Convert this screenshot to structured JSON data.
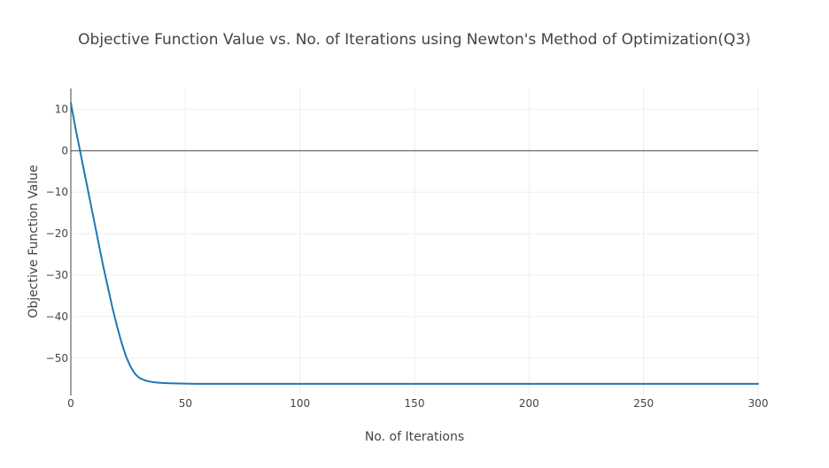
{
  "chart_data": {
    "type": "line",
    "title": "Objective Function Value vs. No. of Iterations using Newton's Method of Optimization(Q3)",
    "xlabel": "No. of Iterations",
    "ylabel": "Objective Function Value",
    "xlim": [
      0,
      300
    ],
    "ylim": [
      -59,
      15
    ],
    "x_ticks": [
      0,
      50,
      100,
      150,
      200,
      250,
      300
    ],
    "x_tick_labels": [
      "0",
      "50",
      "100",
      "150",
      "200",
      "250",
      "300"
    ],
    "y_ticks": [
      10,
      0,
      -10,
      -20,
      -30,
      -40,
      -50
    ],
    "y_tick_labels": [
      "10",
      "0",
      "−10",
      "−20",
      "−30",
      "−40",
      "−50"
    ],
    "grid": true,
    "zero_line": true,
    "line_color": "#1f77b4",
    "series": [
      {
        "x": [
          0,
          2,
          4,
          6,
          8,
          10,
          12,
          14,
          16,
          18,
          20,
          22,
          24,
          26,
          28,
          30,
          32,
          34,
          36,
          38,
          40,
          42,
          45,
          50,
          55,
          60,
          70,
          80,
          100,
          150,
          200,
          250,
          300
        ],
        "y": [
          11.5,
          5.5,
          0.0,
          -5.5,
          -11.0,
          -16.5,
          -22.0,
          -27.5,
          -32.5,
          -37.5,
          -42.0,
          -46.0,
          -49.5,
          -52.0,
          -53.8,
          -54.8,
          -55.3,
          -55.6,
          -55.8,
          -55.9,
          -56.0,
          -56.05,
          -56.1,
          -56.15,
          -56.2,
          -56.2,
          -56.2,
          -56.2,
          -56.2,
          -56.2,
          -56.2,
          -56.2,
          -56.2
        ]
      }
    ]
  }
}
